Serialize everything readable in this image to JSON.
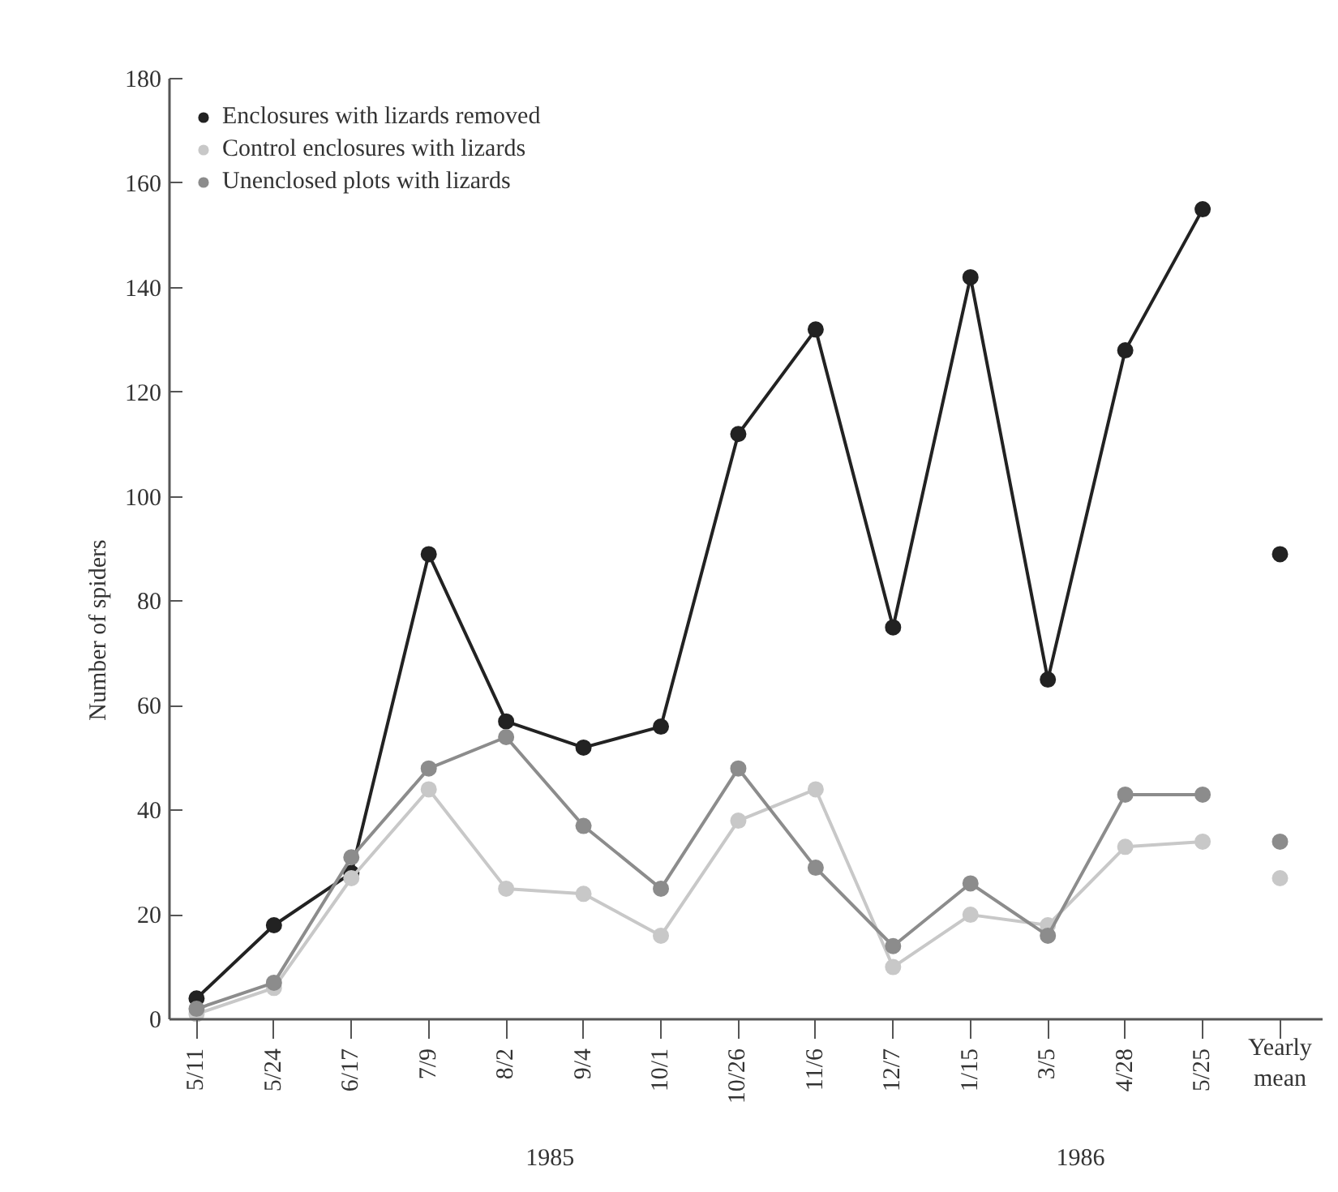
{
  "chart_data": {
    "type": "line",
    "ylabel": "Number of spiders",
    "categories": [
      "5/11",
      "5/24",
      "6/17",
      "7/9",
      "8/2",
      "9/4",
      "10/1",
      "10/26",
      "11/6",
      "12/7",
      "1/15",
      "3/5",
      "4/28",
      "5/25",
      "Yearly mean"
    ],
    "ylim": [
      0,
      180
    ],
    "yticks": [
      0,
      20,
      40,
      60,
      80,
      100,
      120,
      140,
      160,
      180
    ],
    "legend": "top left",
    "marker": "circle",
    "line_style": "solid",
    "annotations": [
      "1985",
      "1986"
    ],
    "series": [
      {
        "name": "Enclosures with lizards removed",
        "color": "#222222",
        "values": [
          4,
          18,
          28,
          89,
          57,
          52,
          56,
          112,
          132,
          75,
          142,
          65,
          128,
          155,
          null
        ]
      },
      {
        "name": "Control enclosures with lizards",
        "color": "#c8c8c8",
        "values": [
          1,
          6,
          27,
          44,
          25,
          24,
          16,
          38,
          44,
          10,
          20,
          18,
          33,
          34,
          null
        ]
      },
      {
        "name": "Unenclosed plots with lizards",
        "color": "#8c8c8c",
        "values": [
          2,
          7,
          31,
          48,
          54,
          37,
          25,
          48,
          29,
          14,
          26,
          16,
          43,
          43,
          null
        ]
      },
      {
        "type": "scatter",
        "color": "#222222",
        "x": [
          "Yearly mean"
        ],
        "values": [
          89
        ]
      },
      {
        "type": "scatter",
        "color": "#c8c8c8",
        "x": [
          "Yearly mean"
        ],
        "values": [
          27
        ]
      },
      {
        "type": "scatter",
        "color": "#8c8c8c",
        "x": [
          "Yearly mean"
        ],
        "values": [
          34
        ]
      }
    ]
  }
}
